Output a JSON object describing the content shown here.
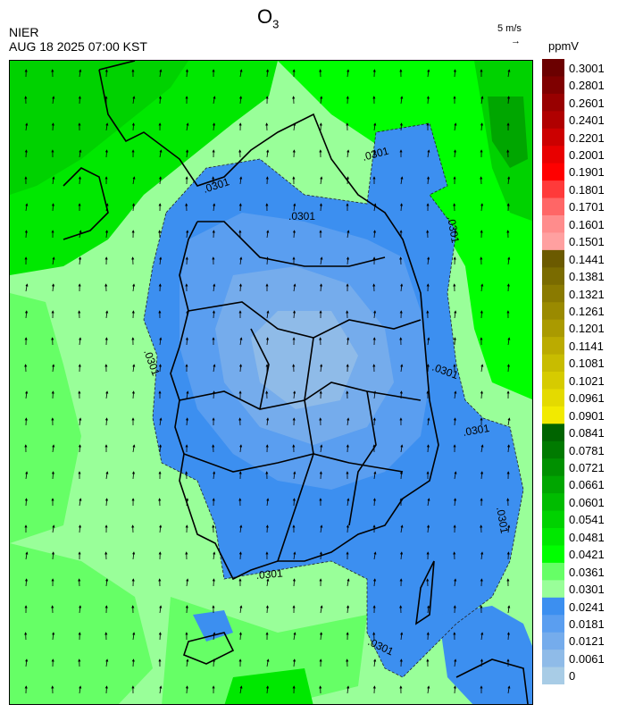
{
  "title": {
    "main": "O",
    "sub": "3"
  },
  "agency": "NIER",
  "datetime": "AUG 18 2025 07:00 KST",
  "wind_reference": {
    "label": "5 m/s",
    "arrow": "→"
  },
  "unit": "ppmV",
  "contour_labels": [
    ".0301",
    ".0301",
    ".0301",
    ".0301",
    ".0301",
    ".0301",
    ".0301",
    ".0301",
    ".0301",
    ".0301"
  ],
  "legend": {
    "levels": [
      "0.3001",
      "0.2801",
      "0.2601",
      "0.2401",
      "0.2201",
      "0.2001",
      "0.1901",
      "0.1801",
      "0.1701",
      "0.1601",
      "0.1501",
      "0.1441",
      "0.1381",
      "0.1321",
      "0.1261",
      "0.1201",
      "0.1141",
      "0.1081",
      "0.1021",
      "0.0961",
      "0.0901",
      "0.0841",
      "0.0781",
      "0.0721",
      "0.0661",
      "0.0601",
      "0.0541",
      "0.0481",
      "0.0421",
      "0.0361",
      "0.0301",
      "0.0241",
      "0.0181",
      "0.0121",
      "0.0061",
      "0"
    ],
    "colors": [
      "#6b0000",
      "#7f0000",
      "#980000",
      "#b00000",
      "#cc0000",
      "#e80000",
      "#ff0000",
      "#ff3a3a",
      "#ff6666",
      "#ff8c8c",
      "#ffa0a0",
      "#6b5a00",
      "#7a6b00",
      "#8a7a00",
      "#9a8a00",
      "#aa9a00",
      "#bbab00",
      "#c8bc00",
      "#d6cb00",
      "#e4da00",
      "#f2ea00",
      "#006400",
      "#007a00",
      "#009000",
      "#00a600",
      "#00bc00",
      "#00d200",
      "#00e800",
      "#00ff00",
      "#66ff66",
      "#99ff99",
      "#3c8ff0",
      "#5a9ef0",
      "#75acec",
      "#8fbbe8",
      "#a8cce6"
    ]
  }
}
